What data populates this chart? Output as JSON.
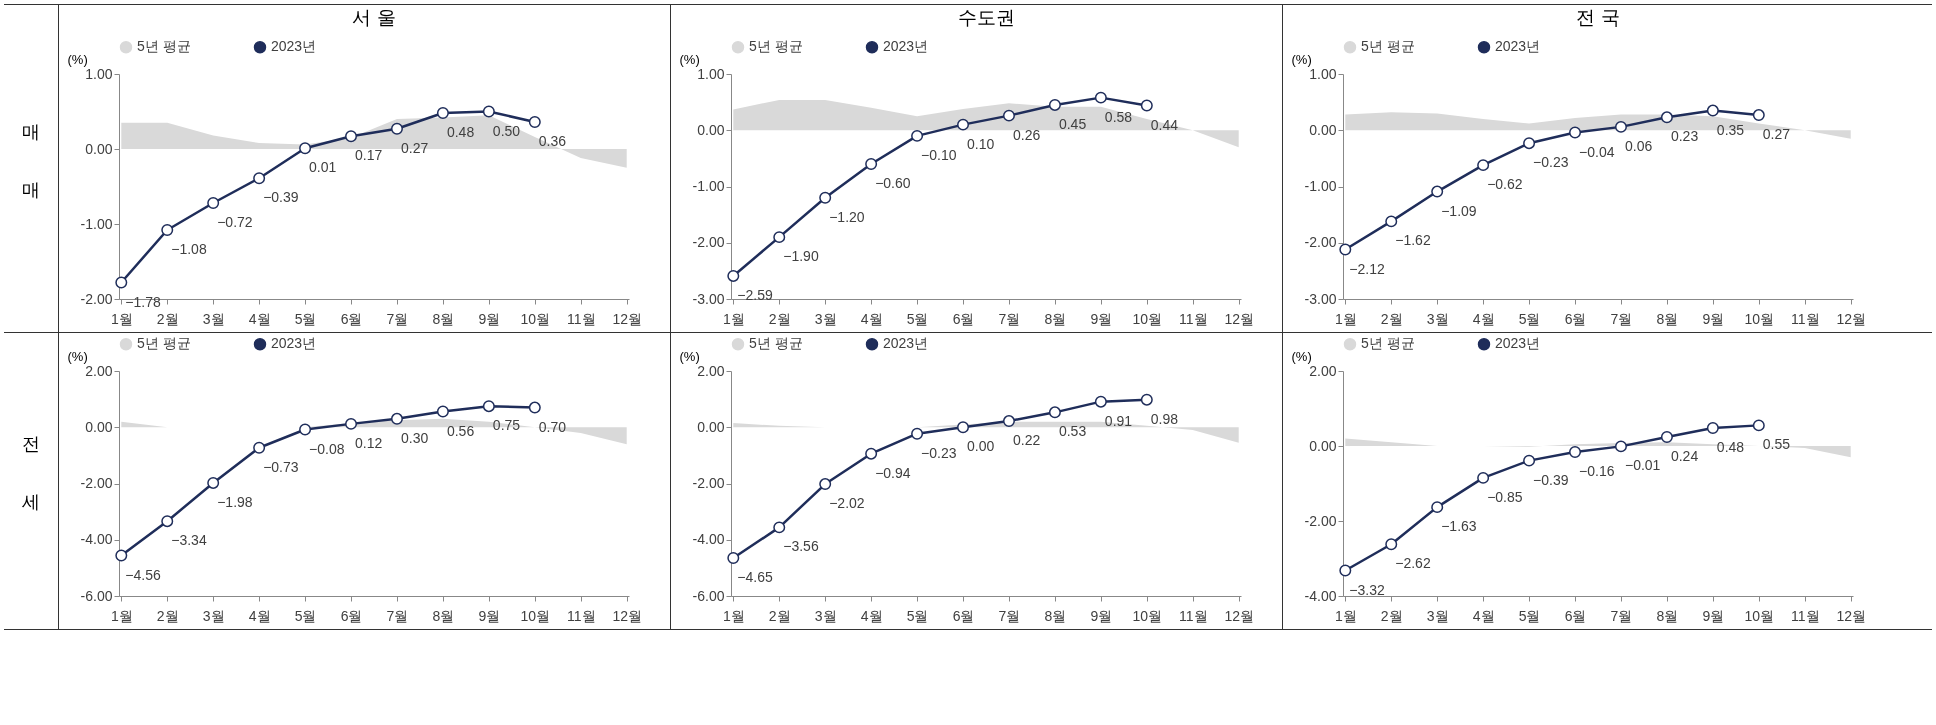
{
  "chart_data": [
    {
      "type": "line",
      "title": "서 울",
      "ylabel": "(%)",
      "annotations": [
        "매매"
      ],
      "legend": "top",
      "categories": [
        "1월",
        "2월",
        "3월",
        "4월",
        "5월",
        "6월",
        "7월",
        "8월",
        "9월",
        "10월",
        "11월",
        "12월"
      ],
      "ylim": [
        -2,
        1
      ],
      "yticks": [
        {
          "value": -2,
          "label": "-2.00"
        },
        {
          "value": -1,
          "label": "-1.00"
        },
        {
          "value": 0,
          "label": "0.00"
        },
        {
          "value": 1,
          "label": "1.00"
        }
      ],
      "series": [
        {
          "name": "5년 평균",
          "type": "area",
          "color": "#d9d9d9",
          "values": [
            0.35,
            0.35,
            0.18,
            0.08,
            0.06,
            0.15,
            0.4,
            0.42,
            0.45,
            0.16,
            -0.12,
            -0.25
          ]
        },
        {
          "name": "2023년",
          "marker": "circle",
          "color": "#1f2d5a",
          "values": [
            -1.78,
            -1.08,
            -0.72,
            -0.39,
            0.01,
            0.17,
            0.27,
            0.48,
            0.5,
            0.36,
            null,
            null
          ],
          "value_labels": [
            "−1.78",
            "−1.08",
            "−0.72",
            "−0.39",
            "0.01",
            "0.17",
            "0.27",
            "0.48",
            "0.50",
            "0.36",
            null,
            null
          ]
        }
      ]
    },
    {
      "type": "line",
      "title": "수도권",
      "ylabel": "(%)",
      "legend": "top",
      "categories": [
        "1월",
        "2월",
        "3월",
        "4월",
        "5월",
        "6월",
        "7월",
        "8월",
        "9월",
        "10월",
        "11월",
        "12월"
      ],
      "ylim": [
        -3,
        1
      ],
      "yticks": [
        {
          "value": -3,
          "label": "-3.00"
        },
        {
          "value": -2,
          "label": "-2.00"
        },
        {
          "value": -1,
          "label": "-1.00"
        },
        {
          "value": 0,
          "label": "0.00"
        },
        {
          "value": 1,
          "label": "1.00"
        }
      ],
      "series": [
        {
          "name": "5년 평균",
          "type": "area",
          "color": "#d9d9d9",
          "values": [
            0.37,
            0.54,
            0.54,
            0.4,
            0.25,
            0.38,
            0.48,
            0.42,
            0.42,
            0.2,
            0.0,
            -0.3
          ]
        },
        {
          "name": "2023년",
          "marker": "circle",
          "color": "#1f2d5a",
          "values": [
            -2.59,
            -1.9,
            -1.2,
            -0.6,
            -0.1,
            0.1,
            0.26,
            0.45,
            0.58,
            0.44,
            null,
            null
          ],
          "value_labels": [
            "−2.59",
            "−1.90",
            "−1.20",
            "−0.60",
            "−0.10",
            "0.10",
            "0.26",
            "0.45",
            "0.58",
            "0.44",
            null,
            null
          ]
        }
      ]
    },
    {
      "type": "line",
      "title": "전 국",
      "ylabel": "(%)",
      "legend": "top",
      "categories": [
        "1월",
        "2월",
        "3월",
        "4월",
        "5월",
        "6월",
        "7월",
        "8월",
        "9월",
        "10월",
        "11월",
        "12월"
      ],
      "ylim": [
        -3,
        1
      ],
      "yticks": [
        {
          "value": -3,
          "label": "-3.00"
        },
        {
          "value": -2,
          "label": "-2.00"
        },
        {
          "value": -1,
          "label": "-1.00"
        },
        {
          "value": 0,
          "label": "0.00"
        },
        {
          "value": 1,
          "label": "1.00"
        }
      ],
      "series": [
        {
          "name": "5년 평균",
          "type": "area",
          "color": "#d9d9d9",
          "values": [
            0.28,
            0.32,
            0.3,
            0.2,
            0.12,
            0.22,
            0.28,
            0.28,
            0.25,
            0.12,
            0.0,
            -0.15
          ]
        },
        {
          "name": "2023년",
          "marker": "circle",
          "color": "#1f2d5a",
          "values": [
            -2.12,
            -1.62,
            -1.09,
            -0.62,
            -0.23,
            -0.04,
            0.06,
            0.23,
            0.35,
            0.27,
            null,
            null
          ],
          "value_labels": [
            "−2.12",
            "−1.62",
            "−1.09",
            "−0.62",
            "−0.23",
            "−0.04",
            "0.06",
            "0.23",
            "0.35",
            "0.27",
            null,
            null
          ]
        }
      ]
    },
    {
      "type": "line",
      "ylabel": "(%)",
      "annotations": [
        "전세"
      ],
      "legend": "top",
      "categories": [
        "1월",
        "2월",
        "3월",
        "4월",
        "5월",
        "6월",
        "7월",
        "8월",
        "9월",
        "10월",
        "11월",
        "12월"
      ],
      "ylim": [
        -6,
        2
      ],
      "yticks": [
        {
          "value": -6,
          "label": "-6.00"
        },
        {
          "value": -4,
          "label": "-4.00"
        },
        {
          "value": -2,
          "label": "-2.00"
        },
        {
          "value": 0,
          "label": "0.00"
        },
        {
          "value": 2,
          "label": "2.00"
        }
      ],
      "series": [
        {
          "name": "5년 평균",
          "type": "area",
          "color": "#d9d9d9",
          "values": [
            0.2,
            0.0,
            0.0,
            0.0,
            0.0,
            0.15,
            0.25,
            0.3,
            0.2,
            0.0,
            -0.2,
            -0.6
          ]
        },
        {
          "name": "2023년",
          "marker": "circle",
          "color": "#1f2d5a",
          "values": [
            -4.56,
            -3.34,
            -1.98,
            -0.73,
            -0.08,
            0.12,
            0.3,
            0.56,
            0.75,
            0.7,
            null,
            null
          ],
          "value_labels": [
            "−4.56",
            "−3.34",
            "−1.98",
            "−0.73",
            "−0.08",
            "0.12",
            "0.30",
            "0.56",
            "0.75",
            "0.70",
            null,
            null
          ]
        }
      ]
    },
    {
      "type": "line",
      "ylabel": "(%)",
      "legend": "top",
      "categories": [
        "1월",
        "2월",
        "3월",
        "4월",
        "5월",
        "6월",
        "7월",
        "8월",
        "9월",
        "10월",
        "11월",
        "12월"
      ],
      "ylim": [
        -6,
        2
      ],
      "yticks": [
        {
          "value": -6,
          "label": "-6.00"
        },
        {
          "value": -4,
          "label": "-4.00"
        },
        {
          "value": -2,
          "label": "-2.00"
        },
        {
          "value": 0,
          "label": "0.00"
        },
        {
          "value": 2,
          "label": "2.00"
        }
      ],
      "series": [
        {
          "name": "5년 평균",
          "type": "area",
          "color": "#d9d9d9",
          "values": [
            0.15,
            0.05,
            0.0,
            0.0,
            0.0,
            0.1,
            0.2,
            0.2,
            0.2,
            0.05,
            -0.1,
            -0.55
          ]
        },
        {
          "name": "2023년",
          "marker": "circle",
          "color": "#1f2d5a",
          "values": [
            -4.65,
            -3.56,
            -2.02,
            -0.94,
            -0.23,
            0.0,
            0.22,
            0.53,
            0.91,
            0.98,
            null,
            null
          ],
          "value_labels": [
            "−4.65",
            "−3.56",
            "−2.02",
            "−0.94",
            "−0.23",
            "0.00",
            "0.22",
            "0.53",
            "0.91",
            "0.98",
            null,
            null
          ]
        }
      ]
    },
    {
      "type": "line",
      "ylabel": "(%)",
      "legend": "top",
      "categories": [
        "1월",
        "2월",
        "3월",
        "4월",
        "5월",
        "6월",
        "7월",
        "8월",
        "9월",
        "10월",
        "11월",
        "12월"
      ],
      "ylim": [
        -4,
        2
      ],
      "yticks": [
        {
          "value": -4,
          "label": "-4.00"
        },
        {
          "value": -2,
          "label": "-2.00"
        },
        {
          "value": 0,
          "label": "0.00"
        },
        {
          "value": 2,
          "label": "2.00"
        }
      ],
      "series": [
        {
          "name": "5년 평균",
          "type": "area",
          "color": "#d9d9d9",
          "values": [
            0.2,
            0.1,
            0.0,
            0.0,
            -0.02,
            0.05,
            0.08,
            0.1,
            0.05,
            0.0,
            -0.05,
            -0.3
          ]
        },
        {
          "name": "2023년",
          "marker": "circle",
          "color": "#1f2d5a",
          "values": [
            -3.32,
            -2.62,
            -1.63,
            -0.85,
            -0.39,
            -0.16,
            -0.01,
            0.24,
            0.48,
            0.55,
            null,
            null
          ],
          "value_labels": [
            "−3.32",
            "−2.62",
            "−1.63",
            "−0.85",
            "−0.39",
            "−0.16",
            "−0.01",
            "0.24",
            "0.48",
            "0.55",
            null,
            null
          ]
        }
      ]
    }
  ]
}
